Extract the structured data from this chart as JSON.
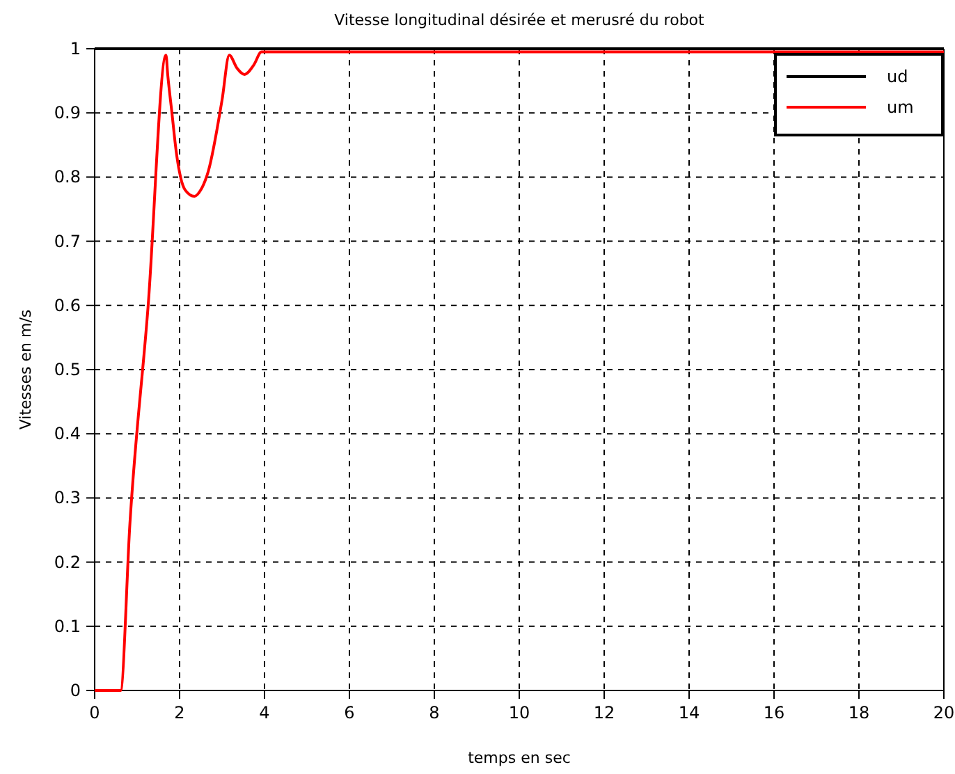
{
  "chart_data": {
    "type": "line",
    "title": "Vitesse longitudinal désirée et merusré du robot",
    "xlabel": "temps en sec",
    "ylabel": "Vitesses en m/s",
    "xlim": [
      0,
      20
    ],
    "xticks": [
      0,
      2,
      4,
      6,
      8,
      10,
      12,
      14,
      16,
      18,
      20
    ],
    "ylim": [
      0,
      1
    ],
    "yticks": [
      0,
      0.1,
      0.2,
      0.3,
      0.4,
      0.5,
      0.6,
      0.7,
      0.8,
      0.9,
      1
    ],
    "grid": true,
    "legend": "top right",
    "line_style": "solid",
    "marker": "none",
    "series": [
      {
        "name": "ud",
        "color": "#000000",
        "x": [
          0,
          20
        ],
        "values": [
          1,
          1
        ]
      },
      {
        "name": "um",
        "color": "#ff0000",
        "x": [
          0,
          0.61,
          0.83,
          1.26,
          1.68,
          1.72,
          1.82,
          1.92,
          2.13,
          2.35,
          2.5,
          2.68,
          3.0,
          3.17,
          3.35,
          3.53,
          3.75,
          3.93,
          20
        ],
        "values": [
          0,
          0,
          0.26,
          0.6,
          0.99,
          0.96,
          0.9,
          0.84,
          0.78,
          0.77,
          0.78,
          0.81,
          0.92,
          0.99,
          0.97,
          0.96,
          0.975,
          0.995,
          0.995
        ]
      }
    ]
  }
}
